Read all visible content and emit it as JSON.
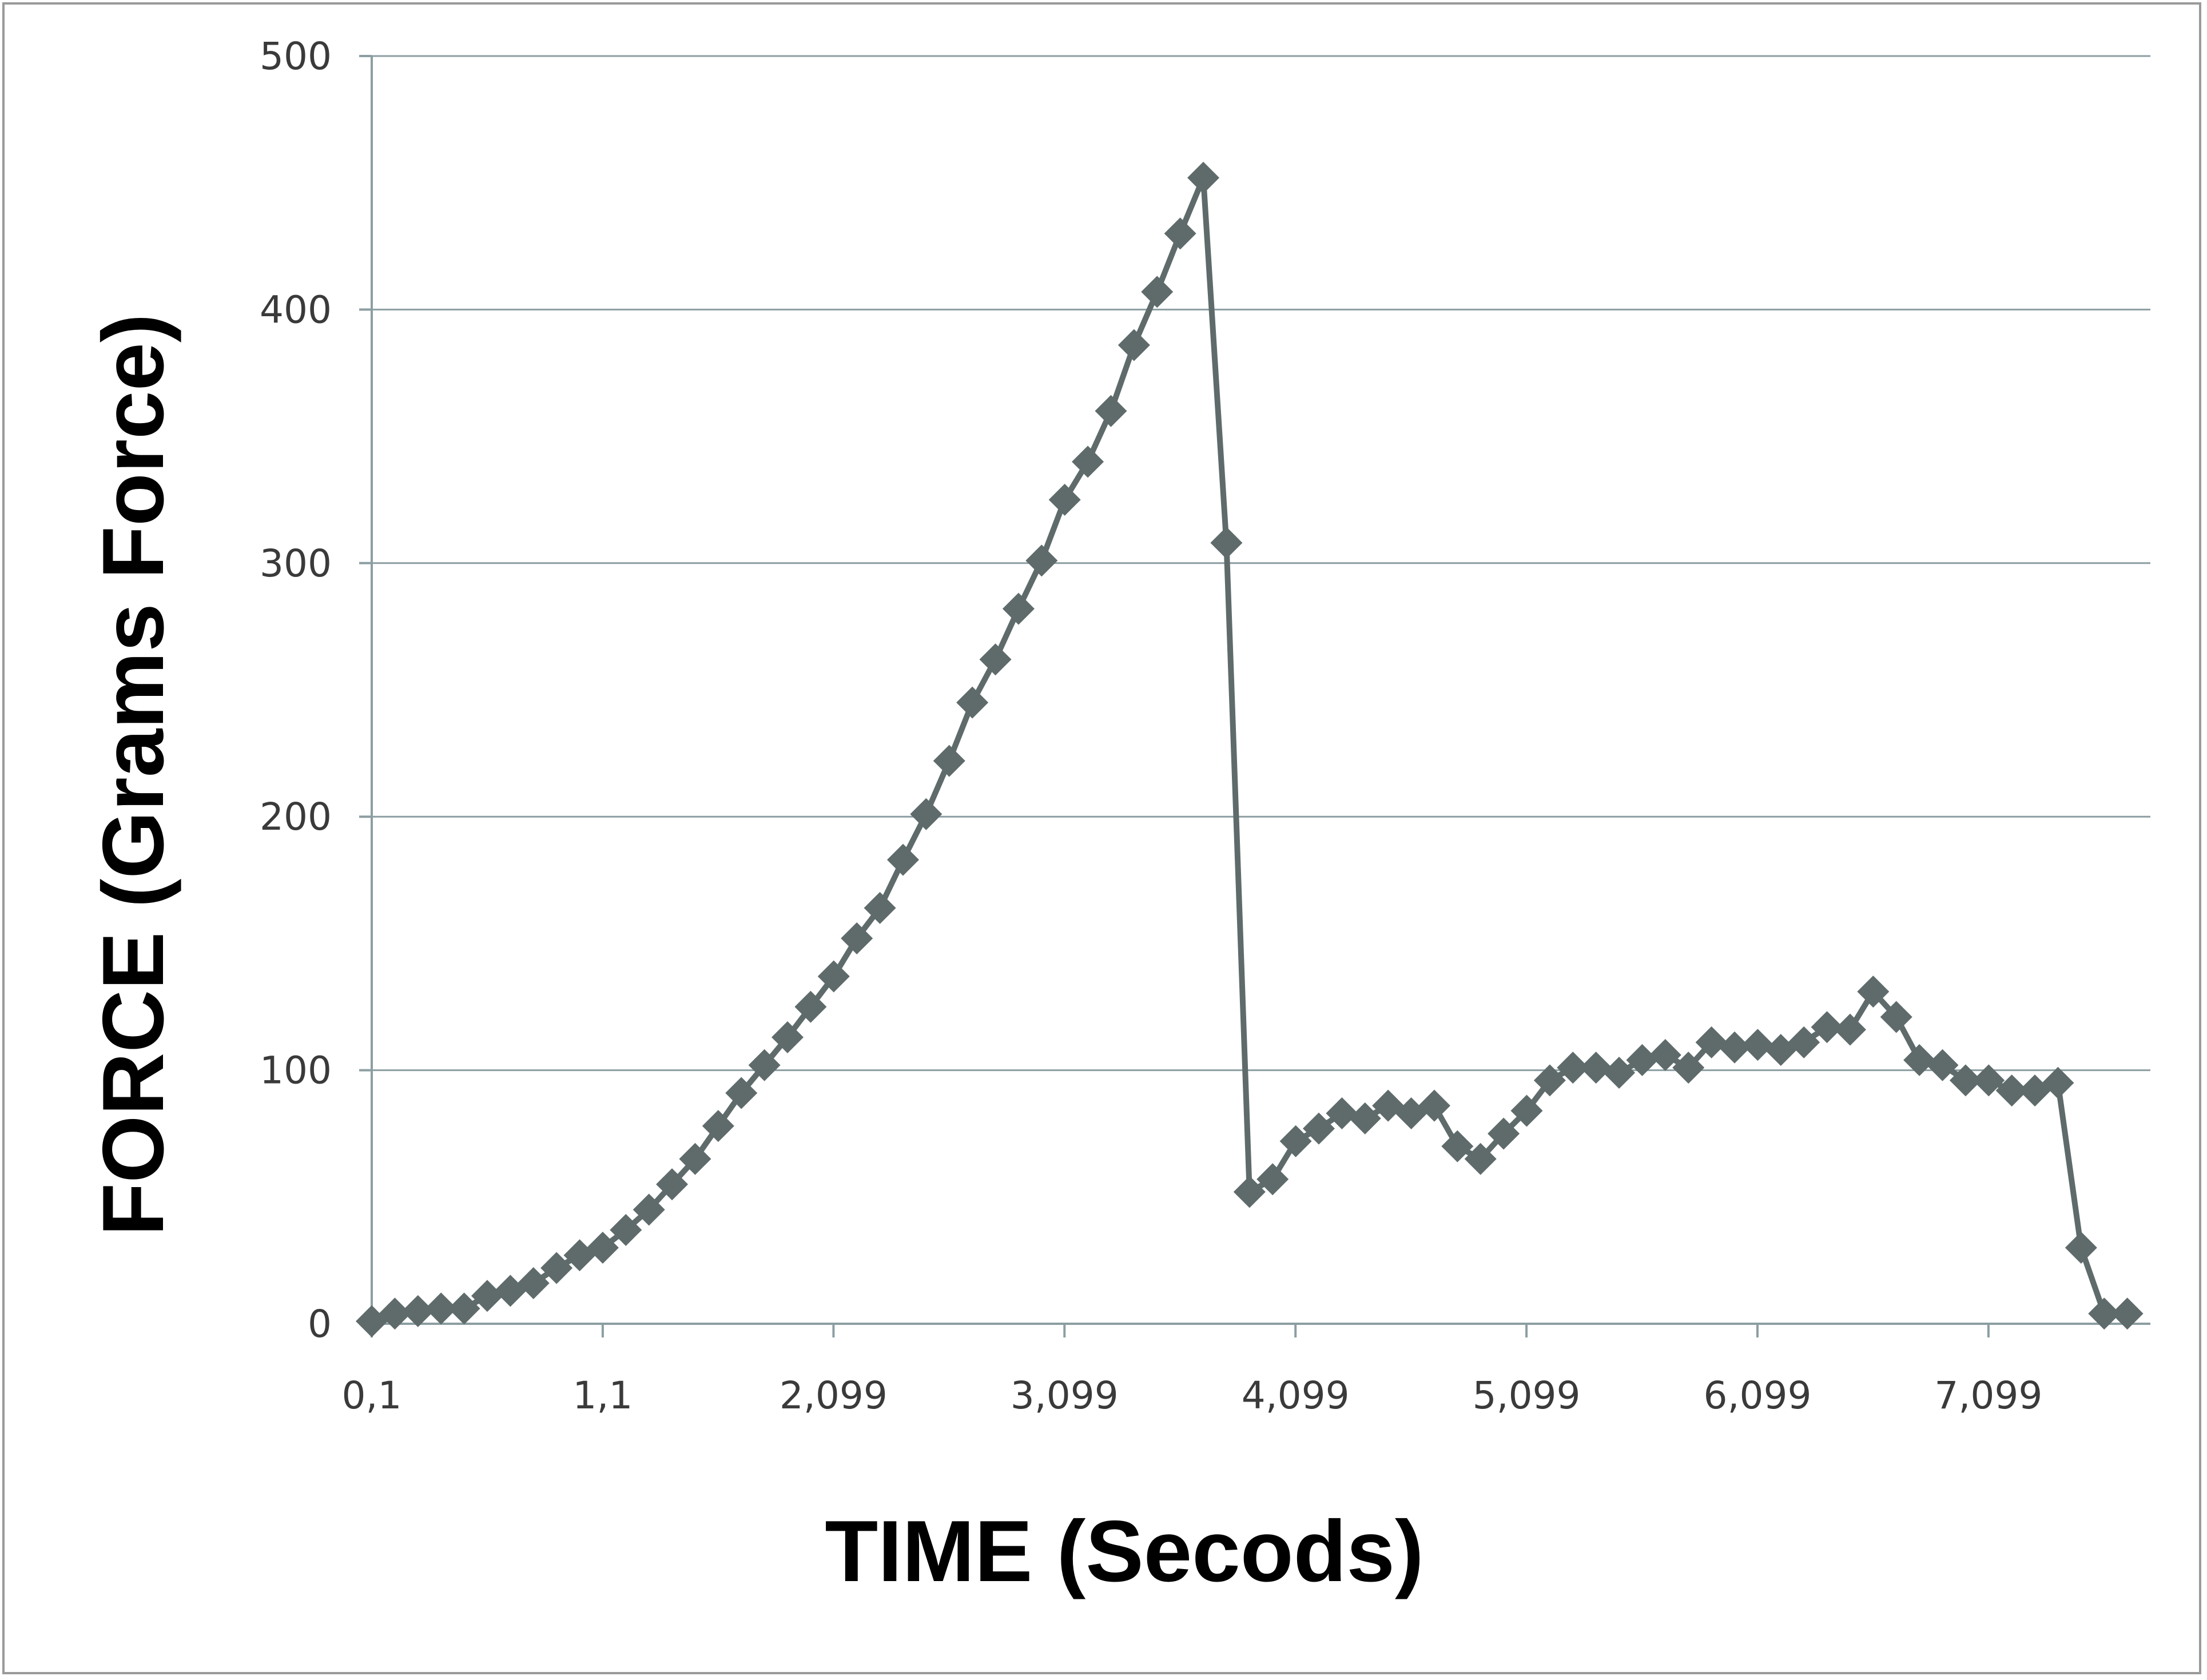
{
  "chart_data": {
    "type": "line",
    "title": "",
    "xlabel": "TIME (Secods)",
    "ylabel": "FORCE (Grams Force)",
    "ylim": [
      0,
      500
    ],
    "yticks": [
      0,
      100,
      200,
      300,
      400,
      500
    ],
    "xtick_labels": [
      "0,1",
      "1,1",
      "2,099",
      "3,099",
      "4,099",
      "5,099",
      "6,099",
      "7,099"
    ],
    "xtick_positions": [
      0.1,
      1.1,
      2.099,
      3.099,
      4.099,
      5.099,
      6.099,
      7.099
    ],
    "xlim": [
      0.1,
      7.8
    ],
    "grid": true,
    "legend": "none",
    "colors": {
      "series": "#5f6b6b",
      "grid": "#8c9ea2",
      "frame": "#9a9a9a"
    },
    "series": [
      {
        "marker": "diamond",
        "x": [
          0.1,
          0.2,
          0.3,
          0.4,
          0.5,
          0.6,
          0.7,
          0.8,
          0.9,
          1.0,
          1.1,
          1.2,
          1.3,
          1.4,
          1.5,
          1.6,
          1.7,
          1.8,
          1.9,
          2.0,
          2.1,
          2.2,
          2.3,
          2.4,
          2.5,
          2.6,
          2.7,
          2.8,
          2.9,
          3.0,
          3.1,
          3.2,
          3.3,
          3.4,
          3.5,
          3.6,
          3.7,
          3.8,
          3.9,
          4.0,
          4.1,
          4.2,
          4.3,
          4.4,
          4.5,
          4.6,
          4.7,
          4.8,
          4.9,
          5.0,
          5.1,
          5.2,
          5.3,
          5.4,
          5.5,
          5.6,
          5.7,
          5.8,
          5.9,
          6.0,
          6.1,
          6.2,
          6.3,
          6.4,
          6.5,
          6.6,
          6.7,
          6.8,
          6.9,
          7.0,
          7.1,
          7.2,
          7.3,
          7.4,
          7.5,
          7.6,
          7.7
        ],
        "y": [
          1,
          4,
          5,
          6,
          6,
          11,
          13,
          16,
          22,
          27,
          30,
          37,
          45,
          55,
          65,
          78,
          91,
          102,
          113,
          125,
          137,
          152,
          164,
          183,
          201,
          222,
          245,
          262,
          282,
          301,
          325,
          340,
          360,
          386,
          407,
          430,
          452,
          308,
          52,
          57,
          72,
          77,
          83,
          81,
          86,
          83,
          86,
          70,
          65,
          75,
          84,
          96,
          101,
          101,
          99,
          104,
          106,
          101,
          111,
          109,
          110,
          108,
          111,
          117,
          116,
          131,
          121,
          104,
          102,
          96,
          96,
          92,
          92,
          95,
          30,
          4,
          4
        ]
      }
    ]
  }
}
